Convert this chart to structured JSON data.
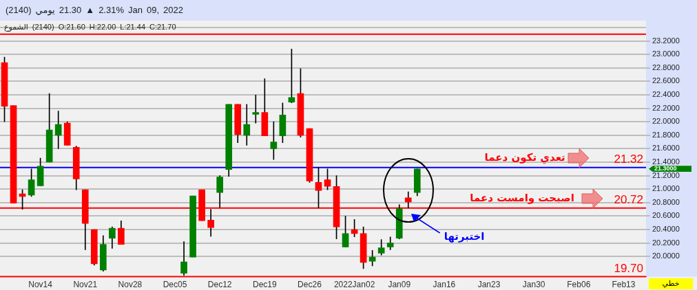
{
  "chart_data": {
    "type": "candlestick",
    "title": "(2140)  يومي  21.30 ▲ 2.31%   Jan 09, 2022",
    "subtitle": "الشموع (2140) O:21.60  H:22.00  L:21.44  C:21.70",
    "categories": [
      null,
      null,
      null,
      null,
      "Nov14",
      null,
      null,
      null,
      null,
      "Nov21",
      null,
      null,
      null,
      null,
      "Nov28",
      null,
      null,
      null,
      null,
      "Dec05",
      null,
      null,
      null,
      null,
      "Dec12",
      null,
      null,
      null,
      null,
      "Dec19",
      null,
      null,
      null,
      null,
      "Dec26",
      null,
      null,
      null,
      null,
      "2022Jan02",
      null,
      null,
      null,
      null,
      "Jan09",
      null,
      null,
      null,
      null,
      "Jan16",
      null,
      null,
      null,
      null,
      "Jan23",
      null,
      null,
      null,
      null,
      "Jan30",
      null,
      null,
      null,
      null,
      "Feb06",
      null,
      null,
      null,
      null,
      "Feb13",
      null,
      null
    ],
    "ohlc": [
      [
        22.88,
        22.96,
        22.0,
        22.23
      ],
      [
        22.24,
        22.24,
        20.79,
        20.79
      ],
      [
        20.93,
        20.99,
        20.7,
        20.89
      ],
      [
        20.91,
        21.3,
        20.89,
        21.14
      ],
      [
        21.05,
        21.46,
        21.05,
        21.34
      ],
      [
        21.4,
        22.42,
        21.4,
        21.88
      ],
      [
        21.8,
        22.16,
        21.6,
        21.96
      ],
      [
        21.98,
        22.0,
        21.65,
        21.65
      ],
      [
        21.62,
        21.64,
        20.99,
        21.15
      ],
      [
        20.99,
        20.99,
        20.1,
        20.49
      ],
      [
        20.4,
        20.4,
        19.87,
        19.89
      ],
      [
        19.8,
        20.31,
        19.78,
        20.18
      ],
      [
        20.27,
        20.44,
        20.12,
        20.42
      ],
      [
        20.42,
        20.53,
        20.18,
        20.18
      ],
      null,
      null,
      null,
      null,
      null,
      null,
      [
        19.75,
        20.22,
        19.72,
        19.92
      ],
      [
        19.99,
        20.9,
        19.99,
        20.9
      ],
      [
        20.99,
        20.99,
        20.53,
        20.53
      ],
      [
        20.54,
        20.7,
        20.3,
        20.43
      ],
      [
        20.95,
        21.2,
        20.73,
        21.18
      ],
      [
        21.29,
        22.26,
        21.19,
        22.26
      ],
      [
        22.26,
        22.26,
        21.69,
        21.81
      ],
      [
        21.8,
        22.26,
        21.65,
        21.96
      ],
      [
        22.11,
        22.4,
        21.98,
        22.14
      ],
      [
        22.14,
        22.64,
        21.79,
        21.79
      ],
      [
        21.6,
        22.0,
        21.44,
        21.7
      ],
      [
        21.79,
        22.28,
        21.69,
        22.1
      ],
      [
        22.29,
        23.08,
        22.28,
        22.36
      ],
      [
        22.42,
        22.79,
        21.77,
        21.8
      ],
      [
        21.9,
        21.9,
        21.1,
        21.12
      ],
      [
        21.1,
        21.32,
        20.72,
        20.98
      ],
      [
        21.14,
        21.3,
        20.99,
        21.04
      ],
      [
        21.04,
        21.2,
        20.26,
        20.44
      ],
      [
        20.14,
        20.6,
        20.14,
        20.34
      ],
      [
        20.4,
        20.55,
        20.29,
        20.34
      ],
      [
        20.34,
        20.44,
        19.82,
        19.91
      ],
      [
        19.93,
        20.09,
        19.86,
        19.99
      ],
      [
        20.05,
        20.25,
        20.02,
        20.13
      ],
      [
        20.14,
        20.29,
        20.1,
        20.2
      ],
      [
        20.27,
        20.77,
        20.26,
        20.71
      ],
      [
        20.87,
        20.96,
        20.72,
        20.81
      ],
      [
        20.95,
        21.3,
        20.9,
        21.3
      ],
      null,
      null,
      null,
      null,
      null,
      null,
      null,
      null,
      null,
      null,
      null,
      null,
      null,
      null,
      null,
      null,
      null,
      null,
      null,
      null,
      null,
      null,
      null,
      null,
      null
    ],
    "colors": [
      "#ff0000",
      "#ff0000",
      "#ff0000",
      "#008000",
      "#008000",
      "#008000",
      "#008000",
      "#ff0000",
      "#ff0000",
      "#ff0000",
      "#ff0000",
      "#008000",
      "#008000",
      "#ff0000",
      null,
      null,
      null,
      null,
      null,
      null,
      "#008000",
      "#008000",
      "#ff0000",
      "#ff0000",
      "#008000",
      "#008000",
      "#ff0000",
      "#008000",
      "#008000",
      "#ff0000",
      "#008000",
      "#008000",
      "#008000",
      "#ff0000",
      "#ff0000",
      "#ff0000",
      "#ff0000",
      "#ff0000",
      "#008000",
      "#ff0000",
      "#ff0000",
      "#008000",
      "#008000",
      "#008000",
      "#008000",
      "#ff0000",
      "#008000",
      null,
      null,
      null,
      null,
      null,
      null,
      null,
      null,
      null,
      null,
      null,
      null,
      null,
      null,
      null,
      null,
      null,
      null,
      null,
      null,
      null,
      null,
      null,
      null,
      null
    ],
    "ylim": [
      19.7,
      23.4
    ],
    "yticks": [
      {
        "value": 20.0,
        "label": "20.0000"
      },
      {
        "value": 20.2,
        "label": "20.2000"
      },
      {
        "value": 20.4,
        "label": "20.4000"
      },
      {
        "value": 20.6,
        "label": "20.6000"
      },
      {
        "value": 20.8,
        "label": "20.8000"
      },
      {
        "value": 21.0,
        "label": "21.0000"
      },
      {
        "value": 21.2,
        "label": "21.2000"
      },
      {
        "value": 21.4,
        "label": "21.4000"
      },
      {
        "value": 21.6,
        "label": "21.6000"
      },
      {
        "value": 21.8,
        "label": "21.8000"
      },
      {
        "value": 22.0,
        "label": "22.0000"
      },
      {
        "value": 22.2,
        "label": "22.2000"
      },
      {
        "value": 22.4,
        "label": "22.4000"
      },
      {
        "value": 22.6,
        "label": "22.6000"
      },
      {
        "value": 22.8,
        "label": "22.8000"
      },
      {
        "value": 23.0,
        "label": "23.0000"
      },
      {
        "value": 23.2,
        "label": "23.2000"
      }
    ],
    "grid": "y",
    "ref_lines": [
      {
        "axis": "y",
        "value": 21.32,
        "label": "21.32",
        "color": "#0000ff"
      },
      {
        "axis": "y",
        "value": 20.72,
        "label": "20.72",
        "color": "#ff0000"
      },
      {
        "axis": "y",
        "value": 19.7,
        "label": "19.70",
        "color": "#ff0000"
      },
      {
        "axis": "y",
        "value": 23.3,
        "color": "#ff0000"
      }
    ],
    "annotations": [
      {
        "text": "تعدي تكون دعما",
        "y": 21.32
      },
      {
        "text": "اصبحت وامست دعما",
        "y": 20.72
      },
      {
        "text": "اختبرتها",
        "y": 20.72
      },
      "21.3000",
      "خطي"
    ]
  }
}
